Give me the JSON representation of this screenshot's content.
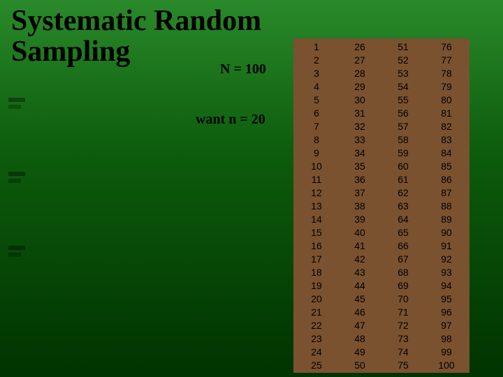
{
  "title_line1": "Systematic Random",
  "title_line2": "Sampling",
  "title_fontsize": 42,
  "label_N": "N = 100",
  "label_want": "want n = 20",
  "label_fontsize": 20,
  "number_grid": {
    "cols": 4,
    "rows": 25,
    "start": 1,
    "end": 100,
    "cell_fontsize": 14,
    "cell_color": "#000000",
    "background_color": "#7a5230"
  },
  "background": {
    "type": "gradient",
    "from": "#2a8a2a",
    "mid": "#0d5c0d",
    "to": "#003300"
  }
}
